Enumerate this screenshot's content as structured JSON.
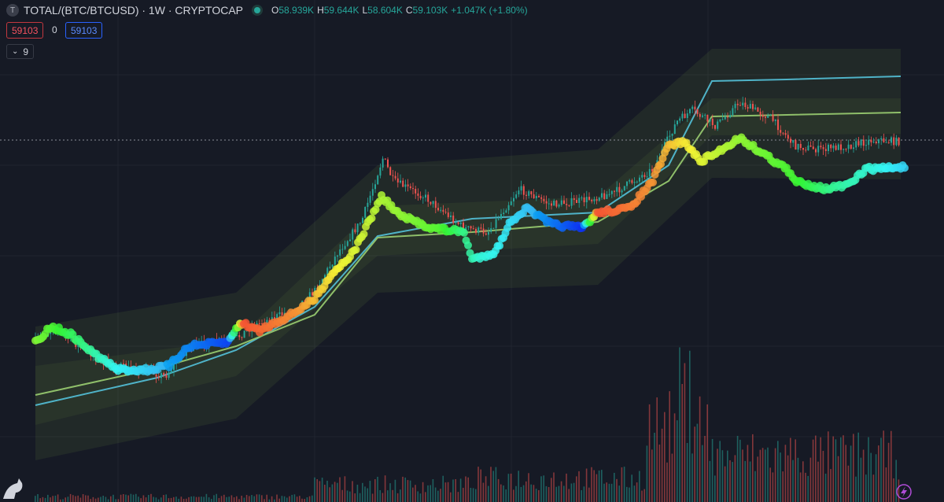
{
  "header": {
    "icon": "T",
    "symbol": "TOTAL/(BTC/BTCUSD) · 1W · CRYPTOCAP",
    "ohlc": [
      {
        "key": "O",
        "value": "58.939K"
      },
      {
        "key": "H",
        "value": "59.644K"
      },
      {
        "key": "L",
        "value": "58.604K"
      },
      {
        "key": "C",
        "value": "59.103K"
      }
    ],
    "change": "+1.047K (+1.80%)"
  },
  "order": {
    "sell": "59103",
    "spread": "0",
    "buy": "59103"
  },
  "indicators": {
    "count": "9"
  }
}
